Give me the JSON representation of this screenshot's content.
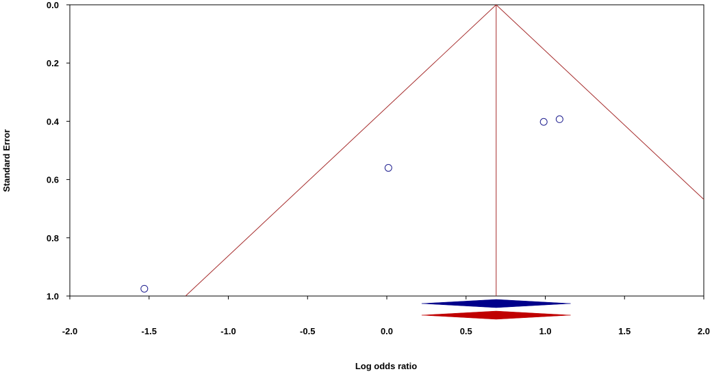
{
  "chart_data": {
    "type": "scatter",
    "title": "",
    "xlabel": "Log odds ratio",
    "ylabel": "Standard Error",
    "xlim": [
      -2.0,
      2.0
    ],
    "ylim": [
      0.0,
      1.0
    ],
    "y_inverted": true,
    "grid": false,
    "legend": "none",
    "x_ticks": [
      -2.0,
      -1.5,
      -1.0,
      -0.5,
      0.0,
      0.5,
      1.0,
      1.5,
      2.0
    ],
    "x_tick_labels": [
      "-2.0",
      "-1.5",
      "-1.0",
      "-0.5",
      "0.0",
      "0.5",
      "1.0",
      "1.5",
      "2.0"
    ],
    "y_ticks": [
      0.0,
      0.2,
      0.4,
      0.6,
      0.8,
      1.0
    ],
    "y_tick_labels": [
      "0.0",
      "0.2",
      "0.4",
      "0.6",
      "0.8",
      "1.0"
    ],
    "points": [
      {
        "x": -1.53,
        "y": 0.975
      },
      {
        "x": 0.01,
        "y": 0.56
      },
      {
        "x": 0.99,
        "y": 0.402
      },
      {
        "x": 1.09,
        "y": 0.393
      }
    ],
    "pooled_estimate": 0.69,
    "funnel_multiplier": 1.96,
    "summary_diamonds": [
      {
        "center": 0.69,
        "lower": 0.22,
        "upper": 1.16,
        "color": "#00008B"
      },
      {
        "center": 0.69,
        "lower": 0.22,
        "upper": 1.16,
        "color": "#C00000"
      }
    ],
    "colors": {
      "points": "#1F1F8F",
      "funnel_lines": "#A52A2A",
      "axis": "#000000"
    }
  }
}
